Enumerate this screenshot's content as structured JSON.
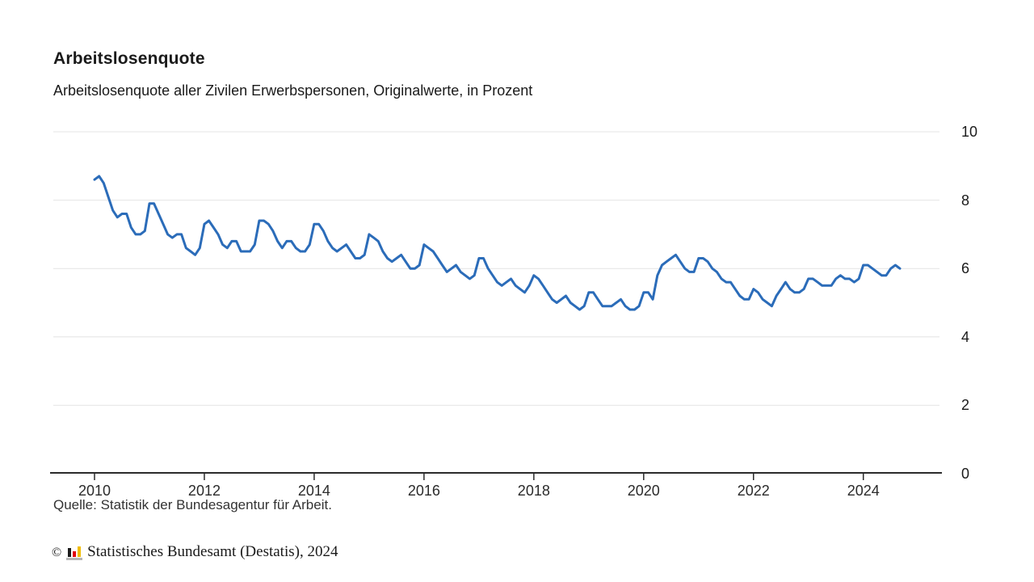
{
  "header": {
    "title": "Arbeitslosenquote",
    "subtitle": "Arbeitslosenquote aller Zivilen Erwerbspersonen, Originalwerte, in Prozent"
  },
  "footer": {
    "source": "Quelle: Statistik der Bundesagentur für Arbeit.",
    "copyright_symbol": "©",
    "copyright_text": "Statistisches Bundesamt (Destatis), 2024",
    "logo_icon": "destatis-bar-chart-icon"
  },
  "colors": {
    "line": "#2b6cb9",
    "grid": "#e4e4e4",
    "axis": "#2b2b2b",
    "text": "#1a1a1a",
    "logo_black": "#1a1a1a",
    "logo_red": "#e1000f",
    "logo_gold": "#f0bc00",
    "logo_gray": "#b5b5b5"
  },
  "chart_data": {
    "type": "line",
    "title": "Arbeitslosenquote",
    "subtitle": "Arbeitslosenquote aller Zivilen Erwerbspersonen, Originalwerte, in Prozent",
    "unit": "Prozent",
    "frequency": "monthly",
    "x_start": "2010-01",
    "x_end": "2024-09",
    "x_tick_labels": [
      "2010",
      "2012",
      "2014",
      "2016",
      "2018",
      "2020",
      "2022",
      "2024"
    ],
    "x_tick_start_year": 2010,
    "y_tick_labels": [
      10,
      8,
      6,
      4,
      2,
      0
    ],
    "ylim": [
      0,
      10
    ],
    "grid": "horizontal",
    "legend": "none",
    "series": [
      {
        "name": "Arbeitslosenquote",
        "values": [
          8.6,
          8.7,
          8.5,
          8.1,
          7.7,
          7.5,
          7.6,
          7.6,
          7.2,
          7.0,
          7.0,
          7.1,
          7.9,
          7.9,
          7.6,
          7.3,
          7.0,
          6.9,
          7.0,
          7.0,
          6.6,
          6.5,
          6.4,
          6.6,
          7.3,
          7.4,
          7.2,
          7.0,
          6.7,
          6.6,
          6.8,
          6.8,
          6.5,
          6.5,
          6.5,
          6.7,
          7.4,
          7.4,
          7.3,
          7.1,
          6.8,
          6.6,
          6.8,
          6.8,
          6.6,
          6.5,
          6.5,
          6.7,
          7.3,
          7.3,
          7.1,
          6.8,
          6.6,
          6.5,
          6.6,
          6.7,
          6.5,
          6.3,
          6.3,
          6.4,
          7.0,
          6.9,
          6.8,
          6.5,
          6.3,
          6.2,
          6.3,
          6.4,
          6.2,
          6.0,
          6.0,
          6.1,
          6.7,
          6.6,
          6.5,
          6.3,
          6.1,
          5.9,
          6.0,
          6.1,
          5.9,
          5.8,
          5.7,
          5.8,
          6.3,
          6.3,
          6.0,
          5.8,
          5.6,
          5.5,
          5.6,
          5.7,
          5.5,
          5.4,
          5.3,
          5.5,
          5.8,
          5.7,
          5.5,
          5.3,
          5.1,
          5.0,
          5.1,
          5.2,
          5.0,
          4.9,
          4.8,
          4.9,
          5.3,
          5.3,
          5.1,
          4.9,
          4.9,
          4.9,
          5.0,
          5.1,
          4.9,
          4.8,
          4.8,
          4.9,
          5.3,
          5.3,
          5.1,
          5.8,
          6.1,
          6.2,
          6.3,
          6.4,
          6.2,
          6.0,
          5.9,
          5.9,
          6.3,
          6.3,
          6.2,
          6.0,
          5.9,
          5.7,
          5.6,
          5.6,
          5.4,
          5.2,
          5.1,
          5.1,
          5.4,
          5.3,
          5.1,
          5.0,
          4.9,
          5.2,
          5.4,
          5.6,
          5.4,
          5.3,
          5.3,
          5.4,
          5.7,
          5.7,
          5.6,
          5.5,
          5.5,
          5.5,
          5.7,
          5.8,
          5.7,
          5.7,
          5.6,
          5.7,
          6.1,
          6.1,
          6.0,
          5.9,
          5.8,
          5.8,
          6.0,
          6.1,
          6.0
        ]
      }
    ]
  }
}
